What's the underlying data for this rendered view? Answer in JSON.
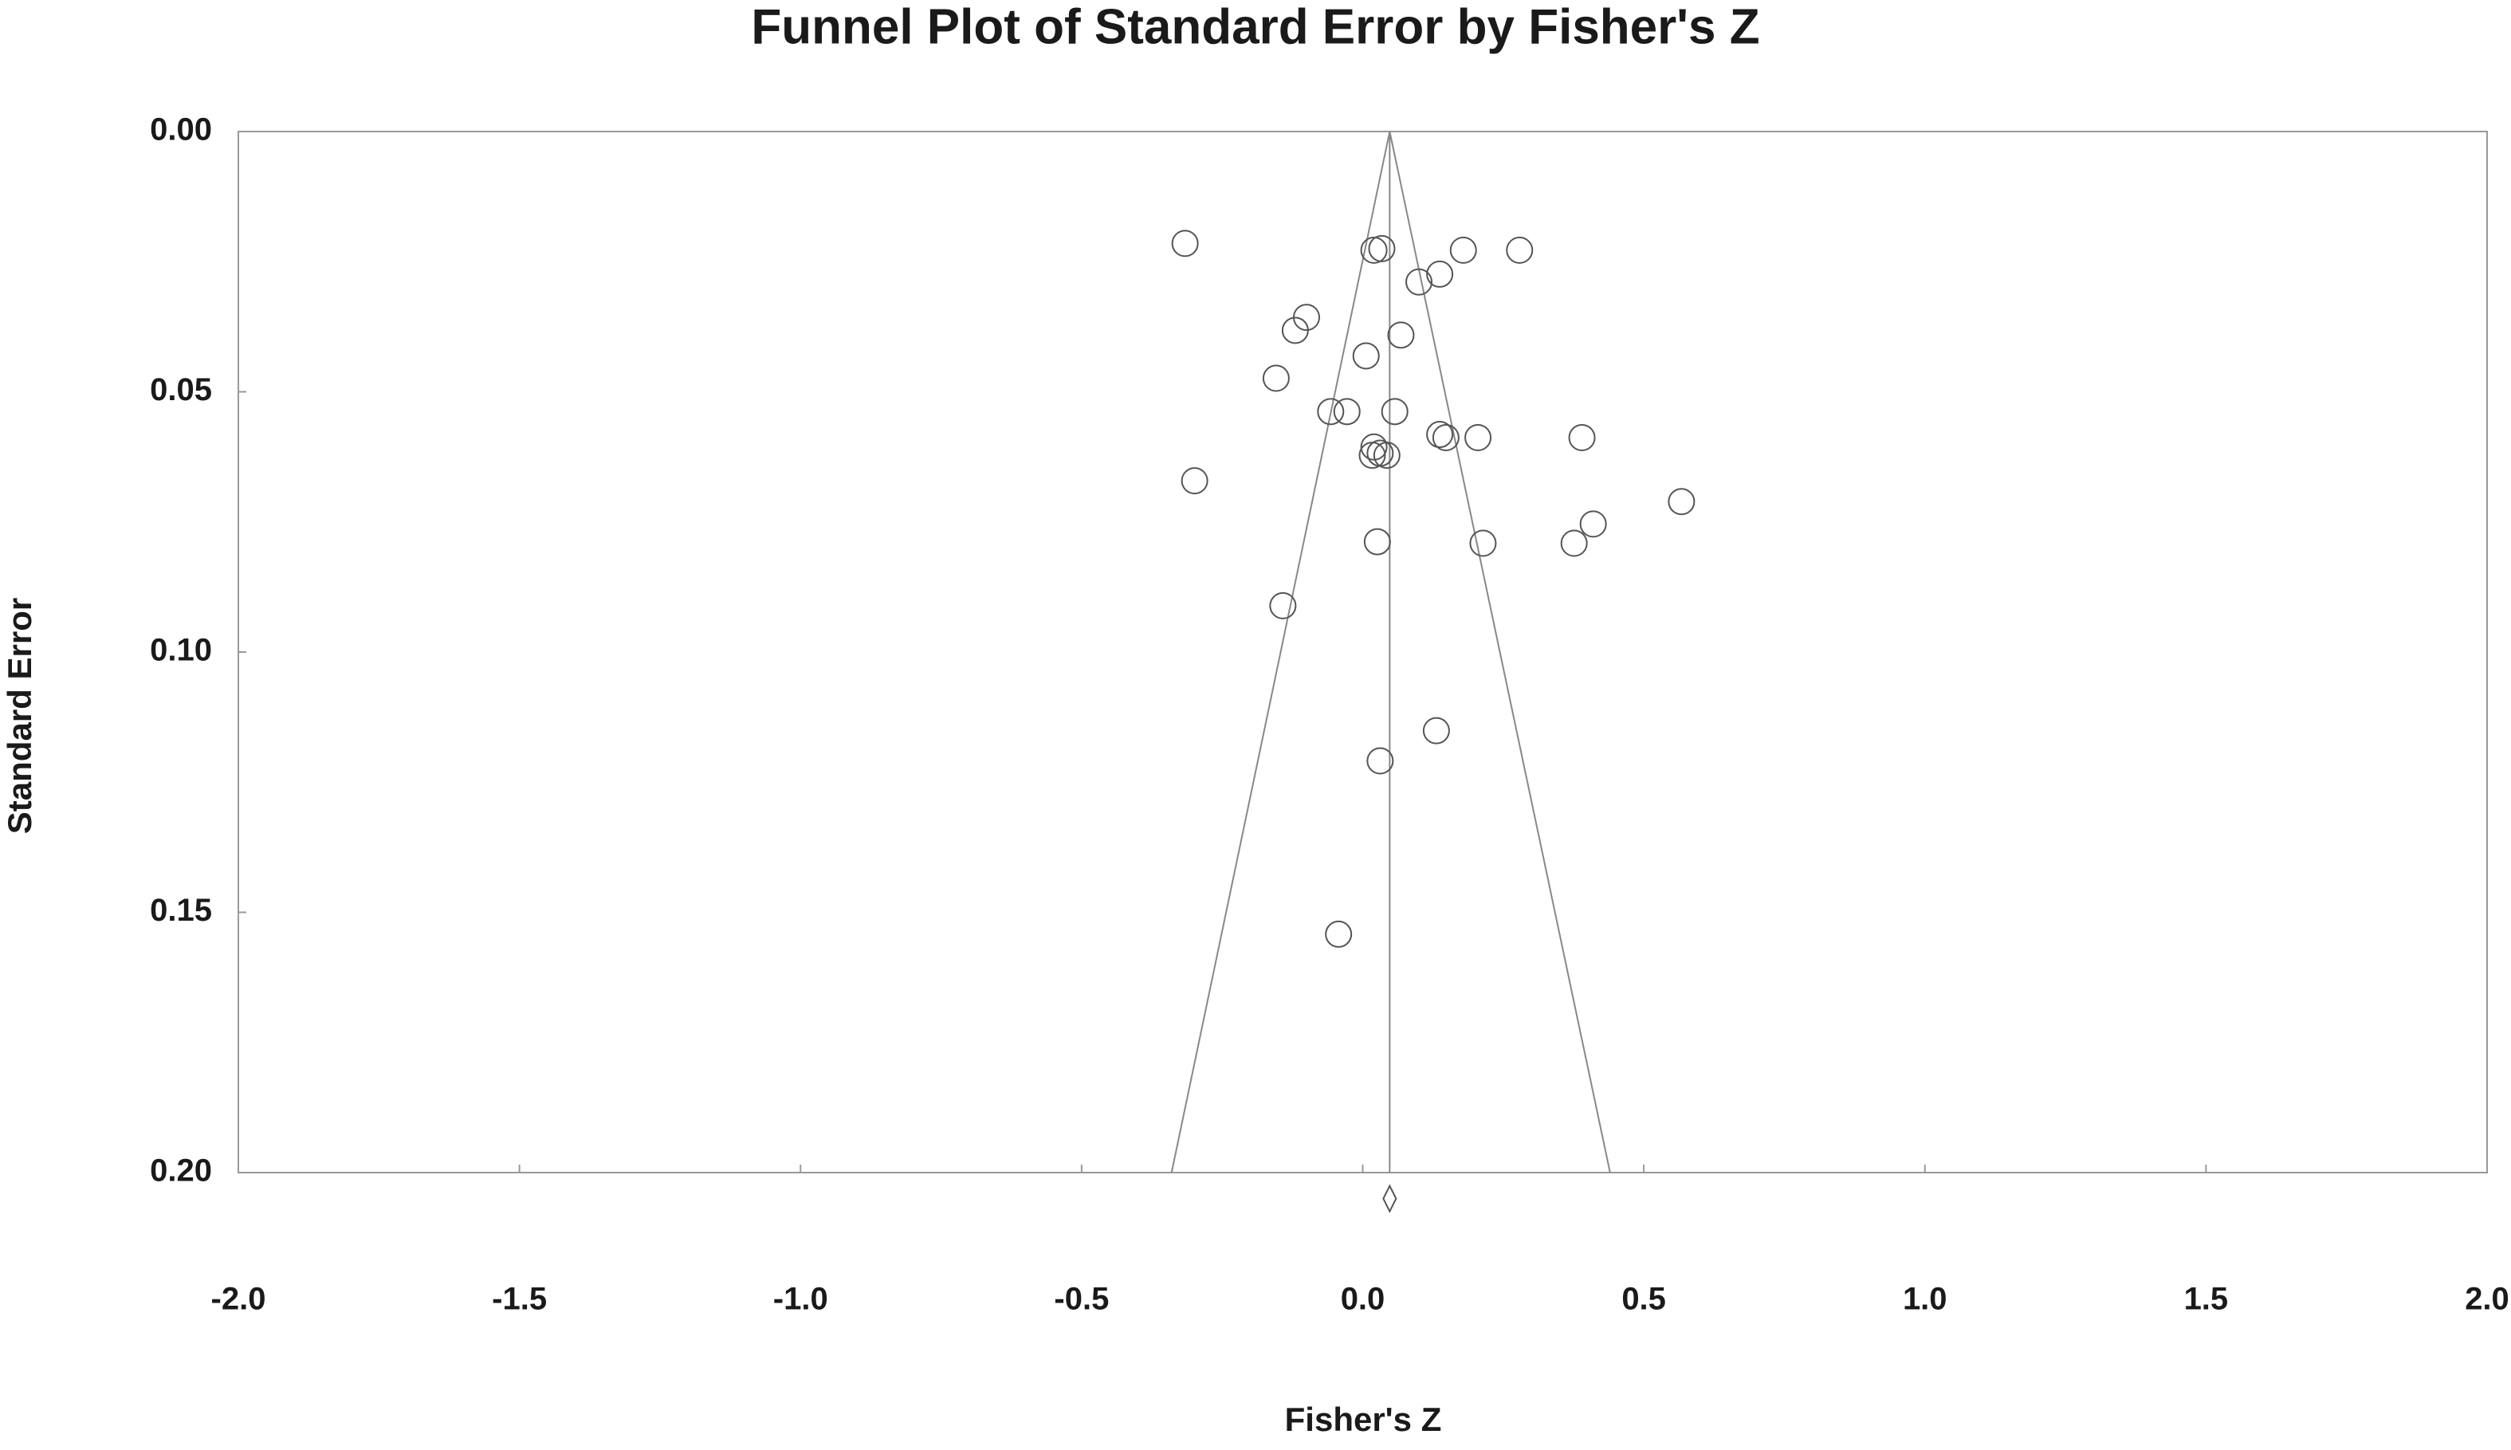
{
  "chart_data": {
    "type": "funnel",
    "title": "Funnel Plot of Standard Error by Fisher's Z",
    "x_label": "Fisher's Z",
    "y_label": "Standard Error",
    "x": [
      -0.316,
      0.02,
      0.034,
      0.179,
      0.279,
      0.137,
      0.1,
      -0.1,
      -0.12,
      0.068,
      0.006,
      -0.154,
      -0.057,
      -0.028,
      0.057,
      0.137,
      0.148,
      0.205,
      0.39,
      0.02,
      0.017,
      0.031,
      0.043,
      -0.299,
      0.567,
      0.41,
      0.376,
      0.214,
      0.026,
      -0.142,
      0.131,
      0.031,
      -0.043
    ],
    "values": [
      0.0215,
      0.0228,
      0.0225,
      0.0228,
      0.0228,
      0.0274,
      0.0289,
      0.0357,
      0.0382,
      0.0391,
      0.0431,
      0.0474,
      0.0538,
      0.0538,
      0.0538,
      0.0582,
      0.0588,
      0.0588,
      0.0588,
      0.0606,
      0.0622,
      0.0618,
      0.0622,
      0.0671,
      0.0711,
      0.0754,
      0.0791,
      0.0791,
      0.0788,
      0.0911,
      0.1151,
      0.1209,
      0.1542
    ],
    "summary_effect": 0.048,
    "funnel": {
      "x": [
        -0.34,
        0.048,
        0.44
      ],
      "y": [
        0.2,
        0,
        0.2
      ]
    },
    "summary_diamond": {
      "x": 0.048,
      "y": 0.205
    },
    "color": "#555555",
    "xlim": [
      -2,
      2
    ],
    "xticks": [
      {
        "value": -2,
        "label": "-2.0"
      },
      {
        "value": -1.5,
        "label": "-1.5"
      },
      {
        "value": -1,
        "label": "-1.0"
      },
      {
        "value": -0.5,
        "label": "-0.5"
      },
      {
        "value": 0,
        "label": "0.0"
      },
      {
        "value": 0.5,
        "label": "0.5"
      },
      {
        "value": 1,
        "label": "1.0"
      },
      {
        "value": 1.5,
        "label": "1.5"
      },
      {
        "value": 2,
        "label": "2.0"
      }
    ],
    "ylim": [
      0,
      0.2
    ],
    "y_inverted": true,
    "yticks": [
      {
        "value": 0,
        "label": "0.00"
      },
      {
        "value": 0.05,
        "label": "0.05"
      },
      {
        "value": 0.1,
        "label": "0.10"
      },
      {
        "value": 0.15,
        "label": "0.15"
      },
      {
        "value": 0.2,
        "label": "0.20"
      }
    ],
    "grid": false
  }
}
